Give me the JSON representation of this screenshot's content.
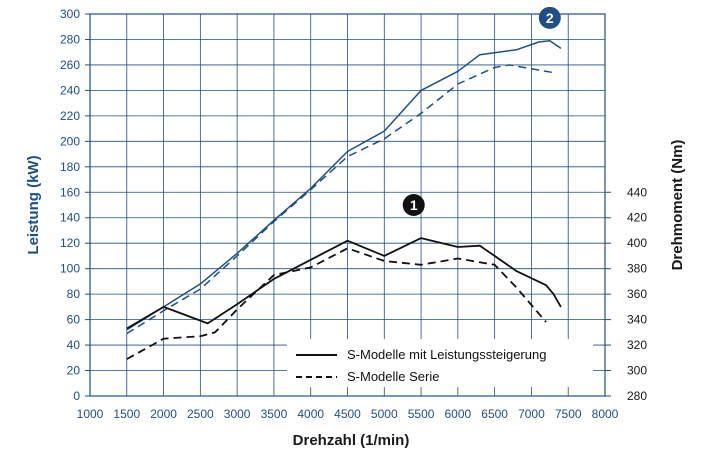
{
  "chart_data": {
    "type": "line",
    "x_ticks": [
      1000,
      1500,
      2000,
      2500,
      3000,
      3500,
      4000,
      4500,
      5000,
      5500,
      6000,
      6500,
      7000,
      7500,
      8000
    ],
    "left_ticks": [
      0,
      20,
      40,
      60,
      80,
      100,
      120,
      140,
      160,
      180,
      200,
      220,
      240,
      260,
      280,
      300
    ],
    "right_ticks": [
      280,
      300,
      320,
      340,
      360,
      380,
      400,
      420,
      440
    ],
    "xlim": [
      1000,
      8000
    ],
    "ylim_left": [
      0,
      300
    ],
    "ylim_right": [
      280,
      440
    ],
    "xlabel": "Drehzahl (1/min)",
    "ylabel_left": "Leistung (kW)",
    "ylabel_right": "Drehmoment (Nm)",
    "grid": true,
    "legend": [
      {
        "label": "S-Modelle mit Leistungssteigerung",
        "style": "solid"
      },
      {
        "label": "S-Modelle Serie",
        "style": "dashed"
      }
    ],
    "markers": [
      {
        "label": "2",
        "x": 7250,
        "y": 297,
        "color": "#1f4f86",
        "text_color": "#ffffff"
      },
      {
        "label": "1",
        "x": 5400,
        "y": 150,
        "color": "#111111",
        "text_color": "#ffffff"
      }
    ],
    "colors": {
      "power": "#1f4f86",
      "torque": "#111111",
      "axis": "#1f4f86",
      "grid": "#1f4f86"
    },
    "series": [
      {
        "quantity": "power",
        "style": "solid",
        "axis": "left",
        "x": [
          1500,
          2000,
          2500,
          3000,
          3500,
          4000,
          4500,
          5000,
          5500,
          6000,
          6300,
          6800,
          7100,
          7250,
          7400
        ],
        "y": [
          52,
          70,
          88,
          112,
          138,
          163,
          192,
          208,
          240,
          255,
          268,
          272,
          278,
          279,
          273
        ]
      },
      {
        "quantity": "power",
        "style": "dashed",
        "axis": "left",
        "x": [
          1500,
          2000,
          2500,
          3000,
          3500,
          4000,
          4500,
          5000,
          5500,
          6000,
          6500,
          6700,
          7000,
          7300
        ],
        "y": [
          49,
          67,
          84,
          110,
          137,
          162,
          188,
          202,
          222,
          245,
          258,
          260,
          257,
          254
        ]
      },
      {
        "quantity": "torque",
        "style": "solid",
        "axis": "right",
        "x": [
          1500,
          2000,
          2600,
          3000,
          3500,
          4000,
          4500,
          5000,
          5500,
          6000,
          6300,
          6800,
          7200,
          7300,
          7400
        ],
        "y": [
          333,
          350,
          337,
          352,
          372,
          387,
          402,
          390,
          404,
          397,
          398,
          378,
          367,
          360,
          350
        ]
      },
      {
        "quantity": "torque",
        "style": "dashed",
        "axis": "right",
        "x": [
          1500,
          2000,
          2500,
          2700,
          3000,
          3500,
          4000,
          4500,
          5000,
          5500,
          6000,
          6500,
          6800,
          7200
        ],
        "y": [
          309,
          325,
          327,
          330,
          348,
          375,
          381,
          396,
          386,
          383,
          388,
          383,
          365,
          338
        ]
      }
    ]
  }
}
